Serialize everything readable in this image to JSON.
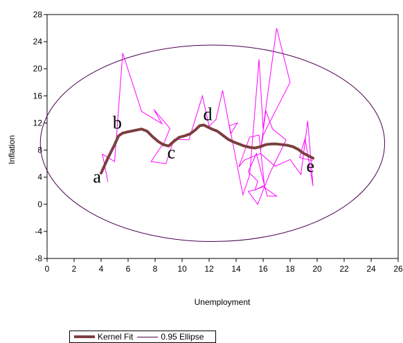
{
  "chart_data": {
    "type": "line",
    "xlabel": "Unemployment",
    "ylabel": "Inflation",
    "xlim": [
      0,
      26
    ],
    "ylim": [
      -8,
      28
    ],
    "xticks": [
      0,
      2,
      4,
      6,
      8,
      10,
      12,
      14,
      16,
      18,
      20,
      22,
      24,
      26
    ],
    "yticks": [
      -8,
      -4,
      0,
      4,
      8,
      12,
      16,
      20,
      24,
      28
    ],
    "grid": false,
    "legend_position": "bottom-left",
    "colors": {
      "kernel": "#7b3f3f",
      "ellipse": "#4b0050",
      "scatter_path": "#ff00ff"
    },
    "series": [
      {
        "name": "Kernel Fit",
        "style": "thick-line",
        "x": [
          4.0,
          4.5,
          5.0,
          5.3,
          5.6,
          6.0,
          6.5,
          7.0,
          7.4,
          7.8,
          8.2,
          8.6,
          9.0,
          9.4,
          9.8,
          10.2,
          10.6,
          11.0,
          11.3,
          11.6,
          11.9,
          12.2,
          12.6,
          13.0,
          13.4,
          13.8,
          14.2,
          14.6,
          15.0,
          15.4,
          15.8,
          16.2,
          16.6,
          17.0,
          17.4,
          17.8,
          18.2,
          18.6,
          19.0,
          19.4,
          19.7
        ],
        "y": [
          4.6,
          6.8,
          8.8,
          10.1,
          10.5,
          10.7,
          10.9,
          11.1,
          10.8,
          10.0,
          9.3,
          8.8,
          8.6,
          9.3,
          9.9,
          10.1,
          10.4,
          11.0,
          11.6,
          11.7,
          11.4,
          11.1,
          10.8,
          10.2,
          9.6,
          9.2,
          8.9,
          8.6,
          8.4,
          8.3,
          8.5,
          8.8,
          8.9,
          8.9,
          8.8,
          8.7,
          8.5,
          8.1,
          7.5,
          7.1,
          6.8
        ]
      },
      {
        "name": "0.95 Ellipse",
        "style": "thin-line",
        "shape": "ellipse",
        "center": [
          12.25,
          9.0
        ],
        "x_semi_axis": 12.75,
        "y_semi_axis": 14.5
      },
      {
        "style": "thin-line",
        "x": [
          4.5,
          4.1,
          5.0,
          5.6,
          7.0,
          8.5,
          7.9,
          9.1,
          8.7,
          8.2,
          7.7,
          8.8,
          9.4,
          10.5,
          11.5,
          12.0,
          12.5,
          13.0,
          13.6,
          14.1,
          13.5,
          14.5,
          15.0,
          15.7,
          16.0,
          17.0,
          18.0,
          16.0,
          15.8,
          16.2,
          16.7,
          17.7,
          16.5,
          15.6,
          14.9,
          15.5,
          16.0,
          17.0,
          16.3,
          15.5,
          14.9,
          15.6,
          15.4,
          16.1,
          15.7,
          15.0,
          14.2,
          14.6,
          15.8,
          16.9,
          18.0,
          18.8,
          19.3,
          19.7,
          19.1,
          18.7,
          19.5,
          19.7
        ],
        "y": [
          3.3,
          7.4,
          6.3,
          22.3,
          13.7,
          11.9,
          14.0,
          11.2,
          9.2,
          7.8,
          6.3,
          6.0,
          9.6,
          9.5,
          16.0,
          11.5,
          12.5,
          16.8,
          10.4,
          12.0,
          11.6,
          1.4,
          4.3,
          21.4,
          11.2,
          26.0,
          18.0,
          10.2,
          7.8,
          13.8,
          11.1,
          9.5,
          4.6,
          0.0,
          1.9,
          2.2,
          2.6,
          1.2,
          1.2,
          7.5,
          4.8,
          3.4,
          2.1,
          2.8,
          10.2,
          9.9,
          5.5,
          6.5,
          7.5,
          5.6,
          6.6,
          4.4,
          12.3,
          2.7,
          9.7,
          6.9,
          6.5,
          6.4
        ]
      }
    ],
    "annotations": [
      {
        "text": "a",
        "x": 3.7,
        "y": 3.2
      },
      {
        "text": "b",
        "x": 5.2,
        "y": 11.2
      },
      {
        "text": "c",
        "x": 9.2,
        "y": 6.8
      },
      {
        "text": "d",
        "x": 11.9,
        "y": 12.4
      },
      {
        "text": "e",
        "x": 19.5,
        "y": 4.8
      }
    ],
    "legend": [
      "Kernel Fit",
      "0.95 Ellipse"
    ]
  }
}
